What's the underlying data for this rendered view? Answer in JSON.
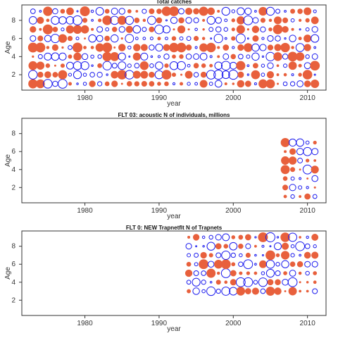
{
  "colors": {
    "negative": "#e8603c",
    "positive": "#1a1aee"
  },
  "chart_data": [
    {
      "type": "scatter",
      "title": "Total catches",
      "xlabel": "year",
      "ylabel": "Age",
      "xlim": [
        1971.5,
        2012.5
      ],
      "ylim": [
        0.3,
        9.7
      ],
      "xticks": [
        1980,
        1990,
        2000,
        2010
      ],
      "yticks": [
        2,
        4,
        6,
        8
      ],
      "years": [
        1973,
        2011
      ],
      "ages": [
        1,
        9
      ],
      "residual_pattern": "bubble residuals, filled = negative, open = positive",
      "points": []
    },
    {
      "type": "scatter",
      "title": "FLT 03:   acoustic   N of individuals, millions",
      "xlabel": "year",
      "ylabel": "Age",
      "xlim": [
        1971.5,
        2012.5
      ],
      "ylim": [
        0.3,
        9.7
      ],
      "xticks": [
        1980,
        1990,
        2000,
        2010
      ],
      "yticks": [
        2,
        4,
        6,
        8
      ],
      "years": [
        2007,
        2008,
        2009,
        2010,
        2011
      ],
      "ages": [
        1,
        7
      ],
      "points": []
    },
    {
      "type": "scatter",
      "title": "FLT 0: NEW Trapnetflt     N of Trapnets",
      "xlabel": "year",
      "ylabel": "Age",
      "xlim": [
        1971.5,
        2012.5
      ],
      "ylim": [
        0.3,
        9.7
      ],
      "xticks": [
        1980,
        1990,
        2000,
        2010
      ],
      "yticks": [
        2,
        4,
        6,
        8
      ],
      "years": [
        1994,
        2011
      ],
      "ages": [
        3,
        9
      ],
      "points": []
    }
  ]
}
